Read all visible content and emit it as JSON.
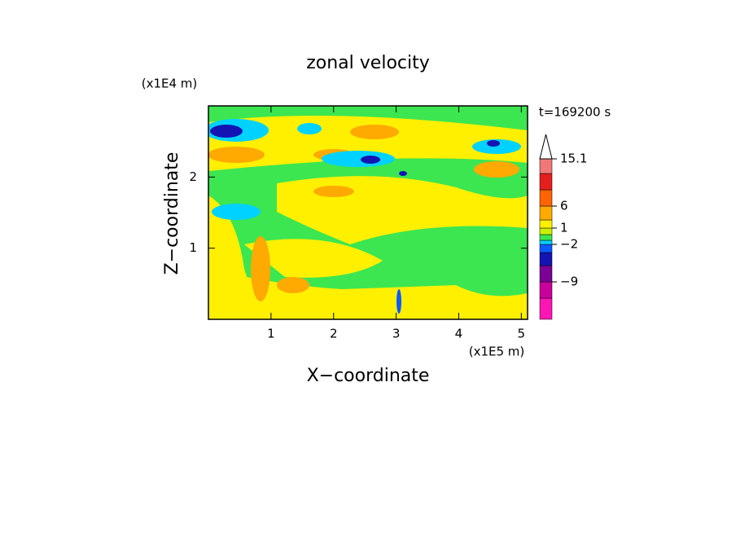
{
  "chart_data": {
    "type": "contour",
    "title": "zonal velocity",
    "xlabel": "X−coordinate",
    "ylabel": "Z−coordinate",
    "xunit": "(x1E5 m)",
    "yunit": "(x1E4 m)",
    "annotation": "t=169200 s",
    "xlim": [
      0,
      5.1
    ],
    "ylim": [
      0,
      3
    ],
    "xticks": [
      1,
      2,
      3,
      4,
      5
    ],
    "yticks": [
      1,
      2
    ],
    "colorbar": {
      "colors": [
        "#ff14b4",
        "#c8009c",
        "#7a0096",
        "#1414b4",
        "#0a5aff",
        "#00d2ff",
        "#3ce650",
        "#c8f000",
        "#fff000",
        "#ffaa00",
        "#ff6400",
        "#e61e1e",
        "#f07878",
        "#f5b4b4"
      ],
      "ticks": [
        15.1,
        6,
        1,
        {
          "value": -2,
          "label": "−2"
        },
        {
          "value": -9,
          "label": "−9"
        }
      ]
    }
  }
}
